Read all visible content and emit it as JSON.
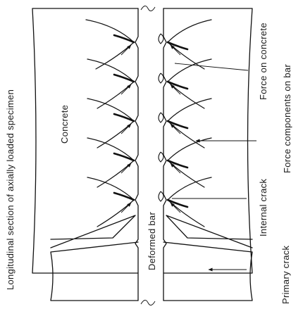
{
  "labels": {
    "specimen": "Longitudinal section of axially loaded specimen",
    "concrete": "Concrete",
    "bar": "Deformed bar",
    "internal_crack": "Internal crack",
    "primary_crack": "Primary crack",
    "force_on_concrete": "Force on concrete",
    "force_components": "Force components on bar"
  },
  "colors": {
    "ink": "#111111",
    "paper": "#ffffff"
  }
}
